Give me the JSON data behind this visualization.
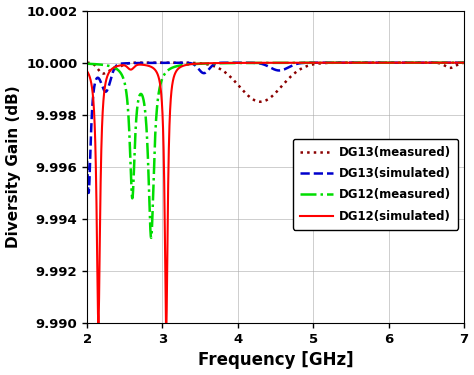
{
  "title": "",
  "xlabel": "Frequency [GHz]",
  "ylabel": "Diversity Gain (dB)",
  "xlim": [
    2,
    7
  ],
  "ylim": [
    9.99,
    10.002
  ],
  "yticks": [
    9.99,
    9.992,
    9.994,
    9.996,
    9.998,
    10.0,
    10.002
  ],
  "xticks": [
    2,
    3,
    4,
    5,
    6,
    7
  ],
  "legend": [
    {
      "label": "DG12(simulated)",
      "color": "#ff0000",
      "linestyle": "solid",
      "linewidth": 1.5
    },
    {
      "label": "DG12(measured)",
      "color": "#00dd00",
      "linestyle": "dashdot",
      "linewidth": 1.8
    },
    {
      "label": "DG13(simulated)",
      "color": "#0000cc",
      "linestyle": "dashed",
      "linewidth": 1.8
    },
    {
      "label": "DG13(measured)",
      "color": "#8b0000",
      "linestyle": "dotted",
      "linewidth": 1.8
    }
  ],
  "background_color": "#ffffff",
  "grid_color": "#aaaaaa"
}
